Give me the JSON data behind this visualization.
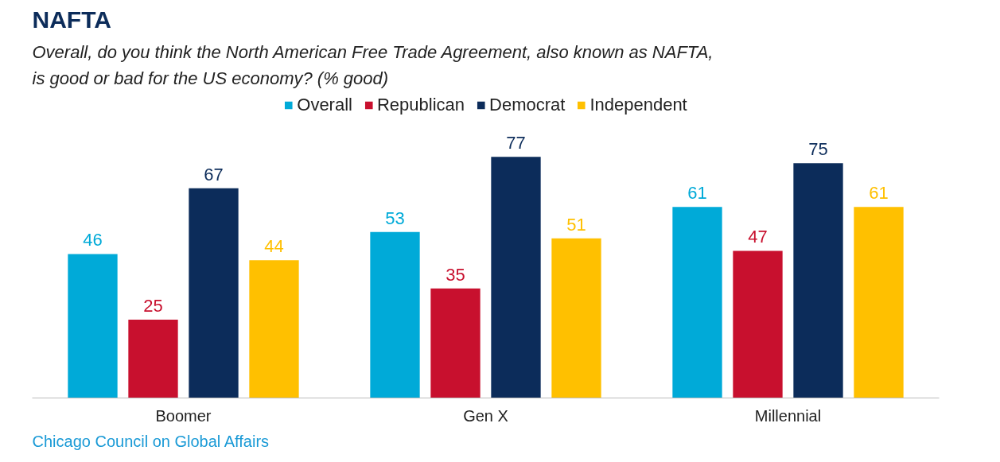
{
  "chart_data": {
    "type": "bar",
    "title": "NAFTA",
    "subtitle": "Overall, do you think the North American Free Trade Agreement, also known as NAFTA, is good or bad for the US economy? (% good)",
    "categories": [
      "Boomer",
      "Gen X",
      "Millennial"
    ],
    "series": [
      {
        "name": "Overall",
        "color": "#00aad8",
        "values": [
          46,
          53,
          61
        ]
      },
      {
        "name": "Republican",
        "color": "#c8102e",
        "values": [
          25,
          35,
          47
        ]
      },
      {
        "name": "Democrat",
        "color": "#0c2c5a",
        "values": [
          67,
          77,
          75
        ]
      },
      {
        "name": "Independent",
        "color": "#ffc000",
        "values": [
          44,
          51,
          61
        ]
      }
    ],
    "data_labels": true,
    "legend": "top",
    "annotations": [
      "Chicago Council on Global Affairs"
    ]
  }
}
